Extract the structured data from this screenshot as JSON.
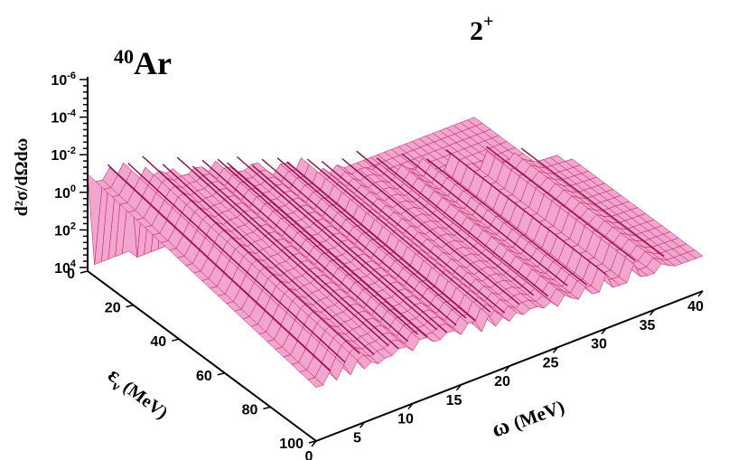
{
  "chart_data": {
    "type": "surface",
    "nucleus_label": "40Ar",
    "nucleus_mass_number": "40",
    "nucleus_symbol": "Ar",
    "multipole_label": "2+",
    "multipole_base": "2",
    "multipole_sup": "+",
    "z_axis": {
      "label": "d²σ/dΩdω",
      "scale": "log",
      "ticks": [
        {
          "base": "10",
          "exp": "-6"
        },
        {
          "base": "10",
          "exp": "-4"
        },
        {
          "base": "10",
          "exp": "-2"
        },
        {
          "base": "10",
          "exp": "0"
        },
        {
          "base": "10",
          "exp": "2"
        },
        {
          "base": "10",
          "exp": "4"
        }
      ]
    },
    "x_axis": {
      "label": "ω (MeV)",
      "symbol": "ω",
      "unit": "(MeV)",
      "range": [
        0,
        40
      ],
      "ticks": [
        "0",
        "5",
        "10",
        "15",
        "20",
        "25",
        "30",
        "35",
        "40"
      ]
    },
    "y_axis": {
      "label": "εν (MeV)",
      "symbol": "ε",
      "subscript": "ν",
      "unit": "(MeV)",
      "range": [
        0,
        100
      ],
      "ticks": [
        "0",
        "20",
        "40",
        "60",
        "80",
        "100"
      ]
    },
    "resonance_omegas": [
      1.5,
      3,
      4.5,
      6,
      7.5,
      8.5,
      9.5,
      10.5,
      11.5,
      12.5,
      13.5,
      14.5,
      15.5,
      16.5,
      18,
      19.5,
      21,
      22.5,
      24,
      26,
      28,
      30,
      33,
      36
    ],
    "colors": {
      "surface_fill": "#f2a6cf",
      "mesh_line": "#c2185b",
      "ridge_line": "#8e0a47",
      "axis": "#000000"
    },
    "grid": false,
    "legend": "none"
  }
}
